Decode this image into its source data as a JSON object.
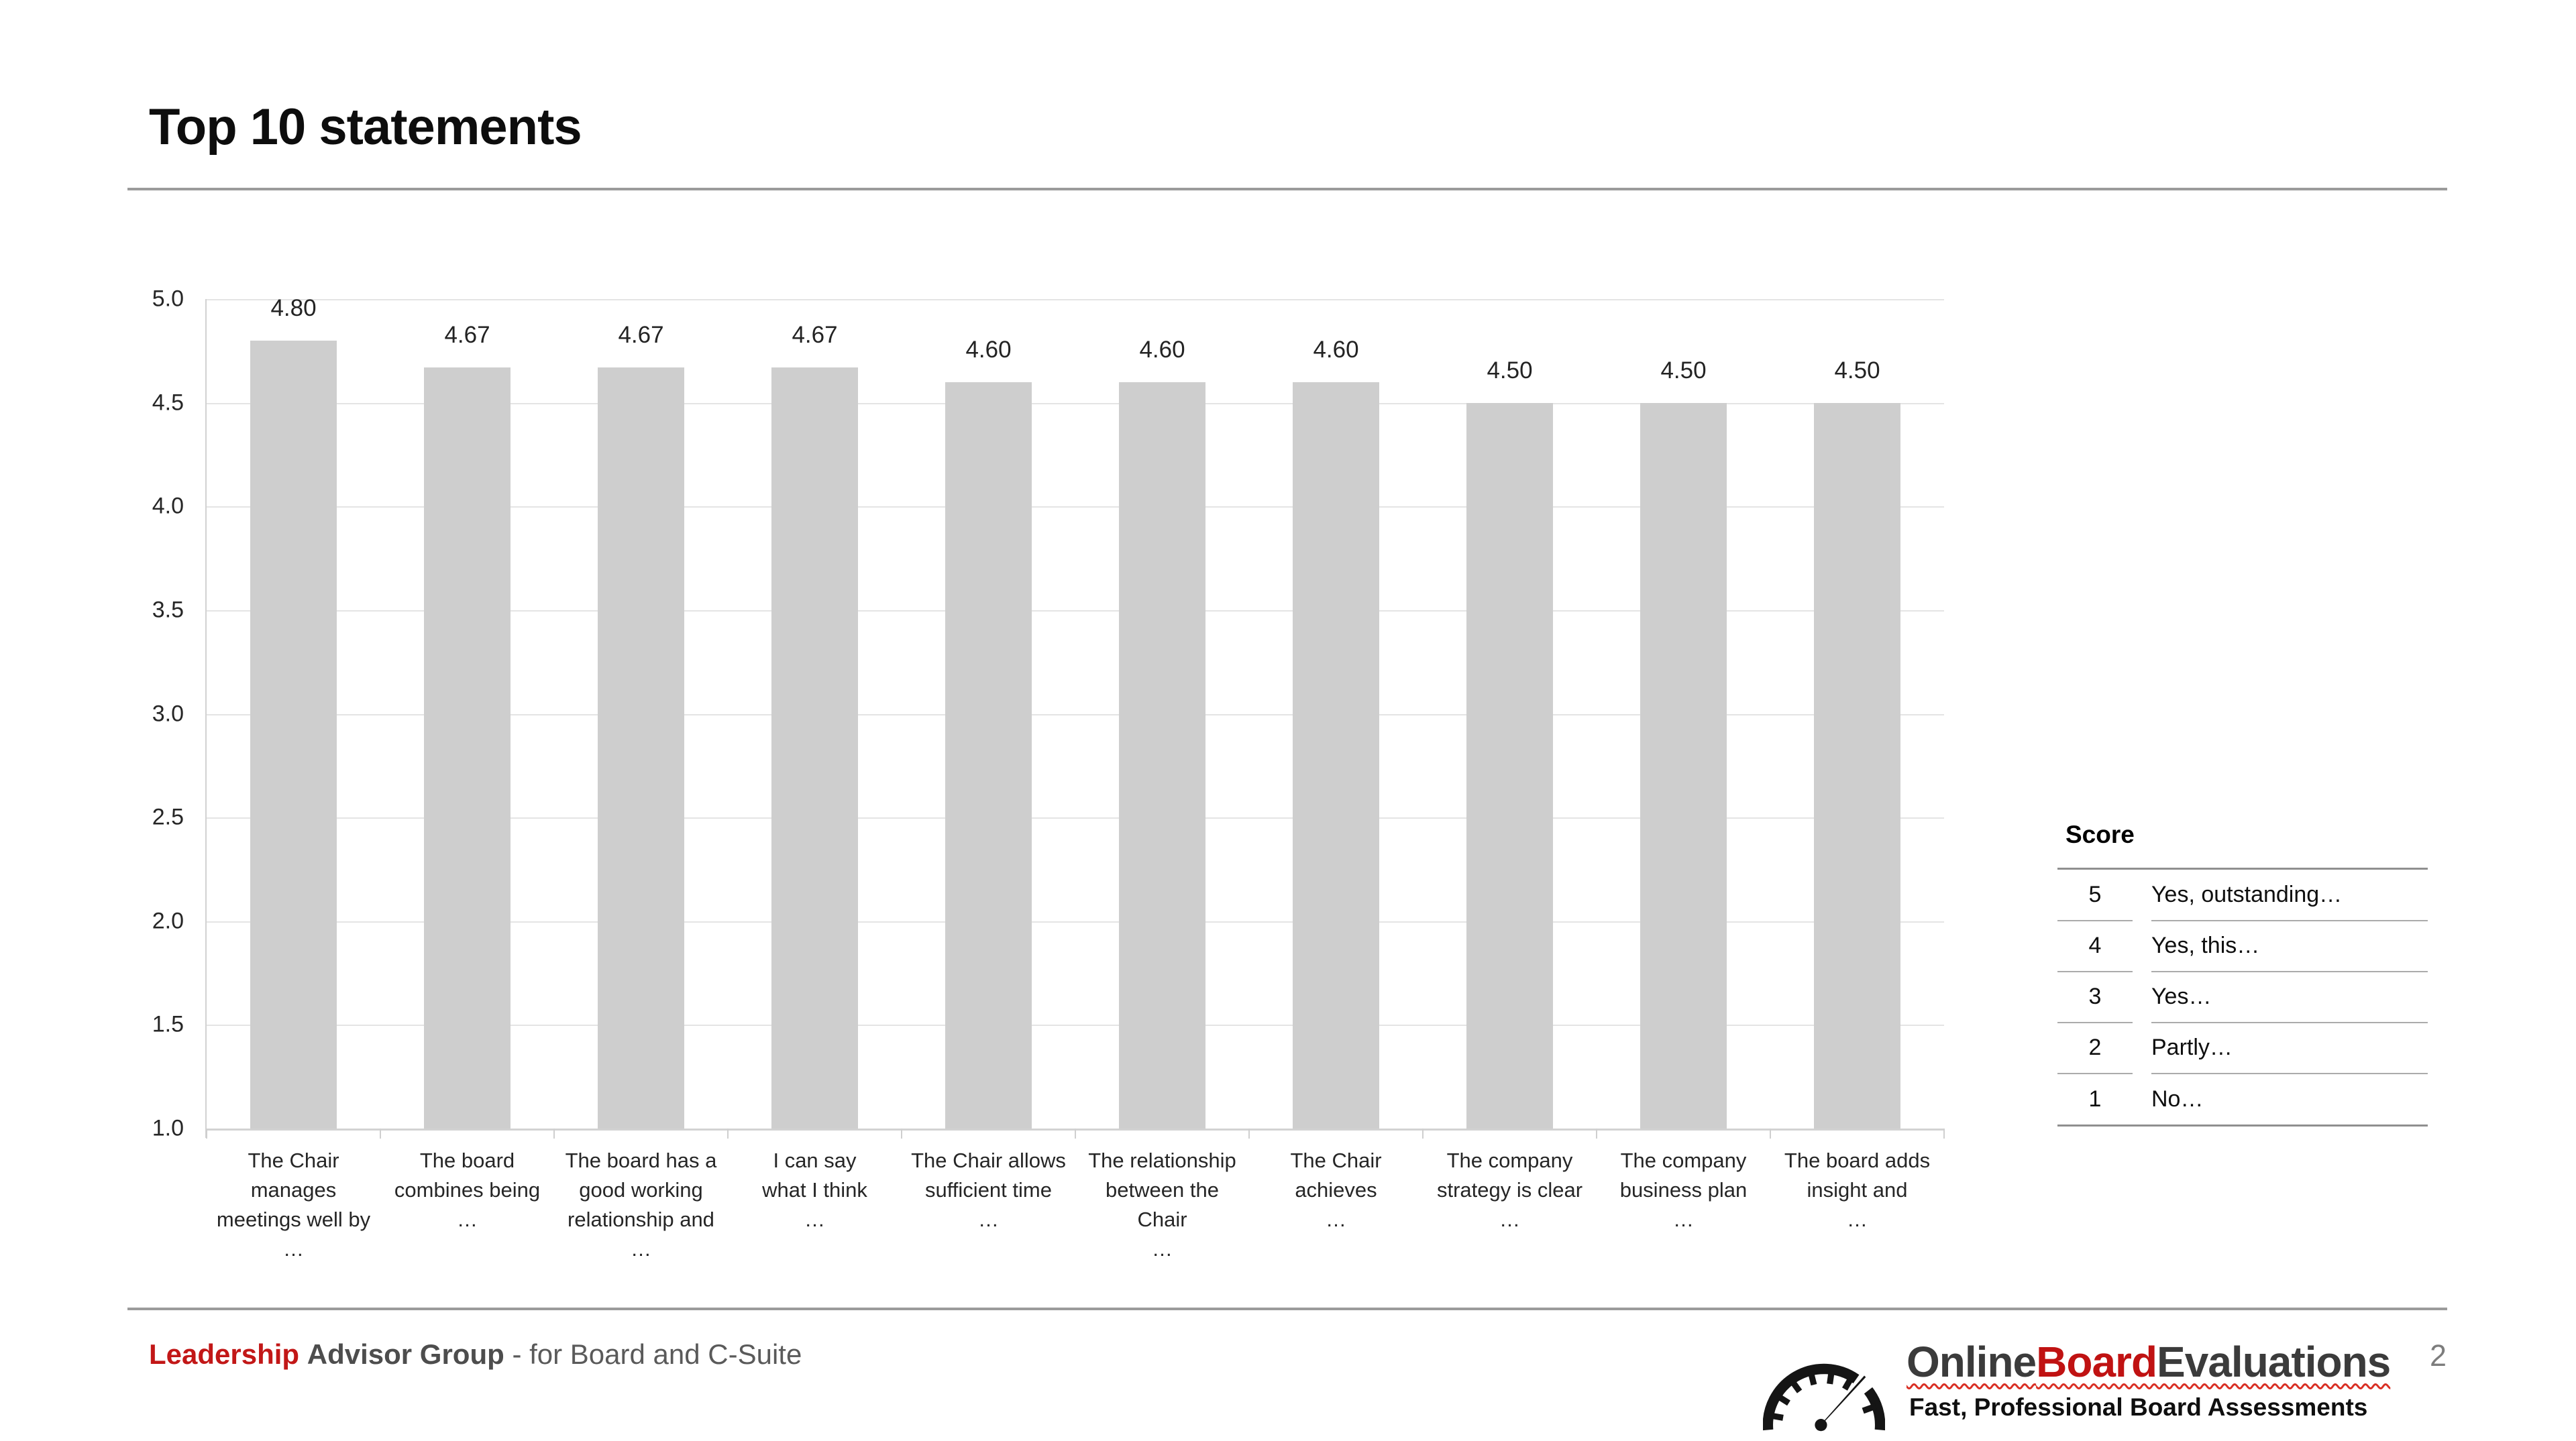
{
  "page": {
    "title": "Top 10 statements"
  },
  "chart_data": {
    "type": "bar",
    "title": "Top 10 statements",
    "categories": [
      "The Chair manages\nmeetings well by\n…",
      "The board\ncombines being\n…",
      "The board has a\ngood working\nrelationship and\n…",
      "I can say\nwhat I think\n…",
      "The Chair allows\nsufficient time\n…",
      "The relationship\nbetween the Chair\n…",
      "The Chair\nachieves\n…",
      "The company\nstrategy is clear\n…",
      "The company\nbusiness plan\n…",
      "The board adds\ninsight and\n…"
    ],
    "values": [
      4.8,
      4.67,
      4.67,
      4.67,
      4.6,
      4.6,
      4.6,
      4.5,
      4.5,
      4.5
    ],
    "value_labels": [
      "4.80",
      "4.67",
      "4.67",
      "4.67",
      "4.60",
      "4.60",
      "4.60",
      "4.50",
      "4.50",
      "4.50"
    ],
    "y_ticks": [
      "5.0",
      "4.5",
      "4.0",
      "3.5",
      "3.0",
      "2.5",
      "2.0",
      "1.5",
      "1.0"
    ],
    "ylim": [
      1.0,
      5.0
    ],
    "xlabel": "",
    "ylabel": "",
    "grid": true,
    "legend_position": "none",
    "bar_color": "#cecece",
    "gridline_color": "#e4e4e4"
  },
  "score_legend": {
    "header": "Score",
    "rows": [
      {
        "score": "5",
        "label": "Yes, outstanding…"
      },
      {
        "score": "4",
        "label": "Yes, this…"
      },
      {
        "score": "3",
        "label": "Yes…"
      },
      {
        "score": "2",
        "label": "Partly…"
      },
      {
        "score": "1",
        "label": "No…"
      }
    ]
  },
  "footer": {
    "brand": {
      "part1": "Leadership",
      "part2": "Advisor Group",
      "part3": "- for Board and C-Suite"
    },
    "logo": {
      "icon": "gauge-icon",
      "part1": "Online",
      "part2": "Board",
      "part3": "Evaluations",
      "tagline": "Fast, Professional Board Assessments"
    },
    "page_number": "2"
  },
  "colors": {
    "accent_red": "#c21717",
    "logo_red": "#c01212",
    "bar_gray": "#cecece",
    "rule_gray": "#9b9b9b"
  }
}
